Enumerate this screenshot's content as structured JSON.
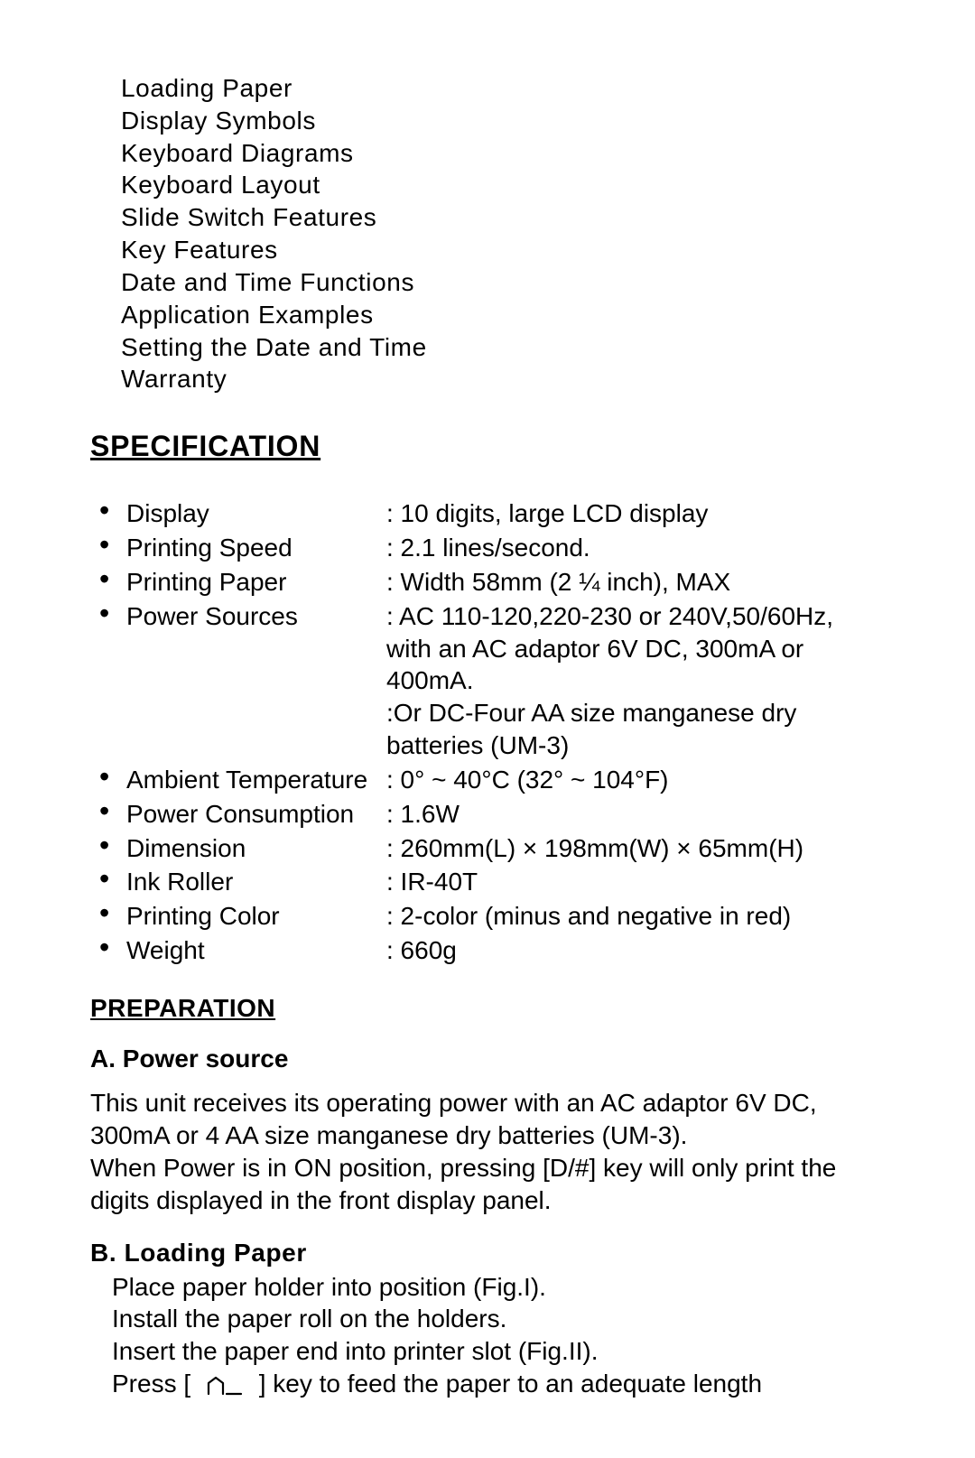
{
  "toc": {
    "items": [
      "Loading Paper",
      "Display Symbols",
      "Keyboard Diagrams",
      "Keyboard Layout",
      "Slide Switch Features",
      "Key Features",
      "Date and Time Functions",
      "Application Examples",
      "Setting the Date and Time",
      "Warranty"
    ]
  },
  "spec_heading": "SPECIFICATION",
  "specs": {
    "display": {
      "label": "Display",
      "value": ": 10 digits, large LCD display"
    },
    "printing_speed": {
      "label": "Printing Speed",
      "value": ": 2.1 lines/second."
    },
    "printing_paper": {
      "label": "Printing Paper",
      "value": ": Width 58mm (2 ¼ inch), MAX"
    },
    "power_sources": {
      "label": "Power Sources",
      "value": ": AC 110-120,220-230 or 240V,50/60Hz,",
      "cont1": "  with an AC adaptor 6V DC, 300mA or",
      "cont2": "400mA.",
      "cont3": ":Or DC-Four AA size manganese dry",
      "cont4": " batteries (UM-3)"
    },
    "ambient_temp": {
      "label": "Ambient Temperature",
      "value": ": 0° ~ 40°C (32° ~ 104°F)"
    },
    "power_cons": {
      "label": "Power Consumption",
      "value": ": 1.6W"
    },
    "dimension": {
      "label": "Dimension",
      "value": ": 260mm(L) × 198mm(W) × 65mm(H)"
    },
    "ink_roller": {
      "label": "Ink Roller",
      "value": ": IR-40T"
    },
    "printing_color": {
      "label": "Printing Color",
      "value": ": 2-color (minus and negative in red)"
    },
    "weight": {
      "label": "Weight",
      "value": ": 660g"
    }
  },
  "prep_heading": "PREPARATION",
  "section_a": {
    "heading": "A. Power source",
    "body": "This unit receives its operating power with an AC adaptor 6V DC, 300mA or 4 AA size manganese dry batteries (UM-3).\nWhen Power is in ON position, pressing [D/#] key will only print the digits displayed in the front display panel."
  },
  "section_b": {
    "heading": "B.  Loading Paper",
    "line1": "Place paper holder into position (Fig.I).",
    "line2": "Install the paper roll on the holders.",
    "line3": "Insert the paper end into printer slot (Fig.II).",
    "line4_pre": "Press [",
    "line4_post": "] key to feed the paper to an adequate length"
  },
  "style": {
    "text_color": "#000000",
    "bg_color": "#ffffff",
    "base_fontsize": 28,
    "heading_fontsize": 32
  }
}
